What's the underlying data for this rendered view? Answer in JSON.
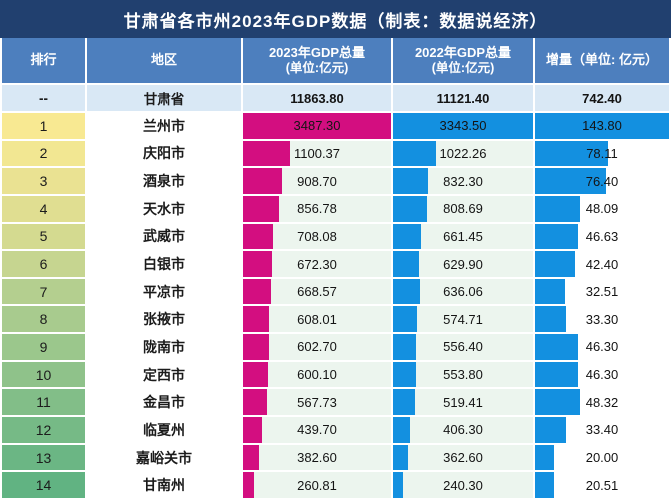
{
  "title": "甘肃省各市州2023年GDP数据（制表：数据说经济）",
  "columns": {
    "rank": {
      "label": "排行"
    },
    "region": {
      "label": "地区"
    },
    "gdp2023": {
      "line1": "2023年GDP总量",
      "line2": "(单位:亿元)"
    },
    "gdp2022": {
      "line1": "2022年GDP总量",
      "line2": "(单位:亿元)"
    },
    "increase": {
      "label": "增量（单位: 亿元）"
    }
  },
  "colors": {
    "title_bg": "#21406F",
    "header_bg": "#4D7FBE",
    "province_row_bg": "#D9E8F5",
    "stripe_blue": "#D7E2F0",
    "gdp_cell_light": "#ECF5EE",
    "gdp_cell_dark": "#DFEDE2",
    "increase_stripe": "#D9E0ED",
    "bar_pink": "#D30E80",
    "bar_blue": "#1390E0"
  },
  "chart_data": {
    "type": "table",
    "title": "甘肃省各市州2023年GDP数据（制表：数据说经济）",
    "column_headers": [
      "排行",
      "地区",
      "2023年GDP总量（单位:亿元）",
      "2022年GDP总量（单位:亿元）",
      "增量（单位: 亿元）"
    ],
    "total_row": {
      "rank": "--",
      "region": "甘肃省",
      "gdp_2023": 11863.8,
      "gdp_2022": 11121.4,
      "increase": 742.4
    },
    "bar_max": {
      "gdp_2023": 3487.3,
      "gdp_2022": 3343.5,
      "increase": 143.8
    },
    "rows": [
      {
        "rank": 1,
        "region": "兰州市",
        "gdp_2023": 3487.3,
        "gdp_2022": 3343.5,
        "increase": 143.8,
        "rank_color": "#F8E992"
      },
      {
        "rank": 2,
        "region": "庆阳市",
        "gdp_2023": 1100.37,
        "gdp_2022": 1022.26,
        "increase": 78.11,
        "rank_color": "#F2E792"
      },
      {
        "rank": 3,
        "region": "酒泉市",
        "gdp_2023": 908.7,
        "gdp_2022": 832.3,
        "increase": 76.4,
        "rank_color": "#EAE292"
      },
      {
        "rank": 4,
        "region": "天水市",
        "gdp_2023": 856.78,
        "gdp_2022": 808.69,
        "increase": 48.09,
        "rank_color": "#E0DE91"
      },
      {
        "rank": 5,
        "region": "武威市",
        "gdp_2023": 708.08,
        "gdp_2022": 661.45,
        "increase": 46.63,
        "rank_color": "#D4DA90"
      },
      {
        "rank": 6,
        "region": "白银市",
        "gdp_2023": 672.3,
        "gdp_2022": 629.9,
        "increase": 42.4,
        "rank_color": "#C6D590"
      },
      {
        "rank": 7,
        "region": "平凉市",
        "gdp_2023": 668.57,
        "gdp_2022": 636.06,
        "increase": 32.51,
        "rank_color": "#B4CF8F"
      },
      {
        "rank": 8,
        "region": "张掖市",
        "gdp_2023": 608.01,
        "gdp_2022": 574.71,
        "increase": 33.3,
        "rank_color": "#A8CB8E"
      },
      {
        "rank": 9,
        "region": "陇南市",
        "gdp_2023": 602.7,
        "gdp_2022": 556.4,
        "increase": 46.3,
        "rank_color": "#9BC78C"
      },
      {
        "rank": 10,
        "region": "定西市",
        "gdp_2023": 600.1,
        "gdp_2022": 553.8,
        "increase": 46.3,
        "rank_color": "#8FC28A"
      },
      {
        "rank": 11,
        "region": "金昌市",
        "gdp_2023": 567.73,
        "gdp_2022": 519.41,
        "increase": 48.32,
        "rank_color": "#82BE88"
      },
      {
        "rank": 12,
        "region": "临夏州",
        "gdp_2023": 439.7,
        "gdp_2022": 406.3,
        "increase": 33.4,
        "rank_color": "#76BA86"
      },
      {
        "rank": 13,
        "region": "嘉峪关市",
        "gdp_2023": 382.6,
        "gdp_2022": 362.6,
        "increase": 20.0,
        "rank_color": "#6BB684"
      },
      {
        "rank": 14,
        "region": "甘南州",
        "gdp_2023": 260.81,
        "gdp_2022": 240.3,
        "increase": 20.51,
        "rank_color": "#61B382"
      }
    ]
  }
}
